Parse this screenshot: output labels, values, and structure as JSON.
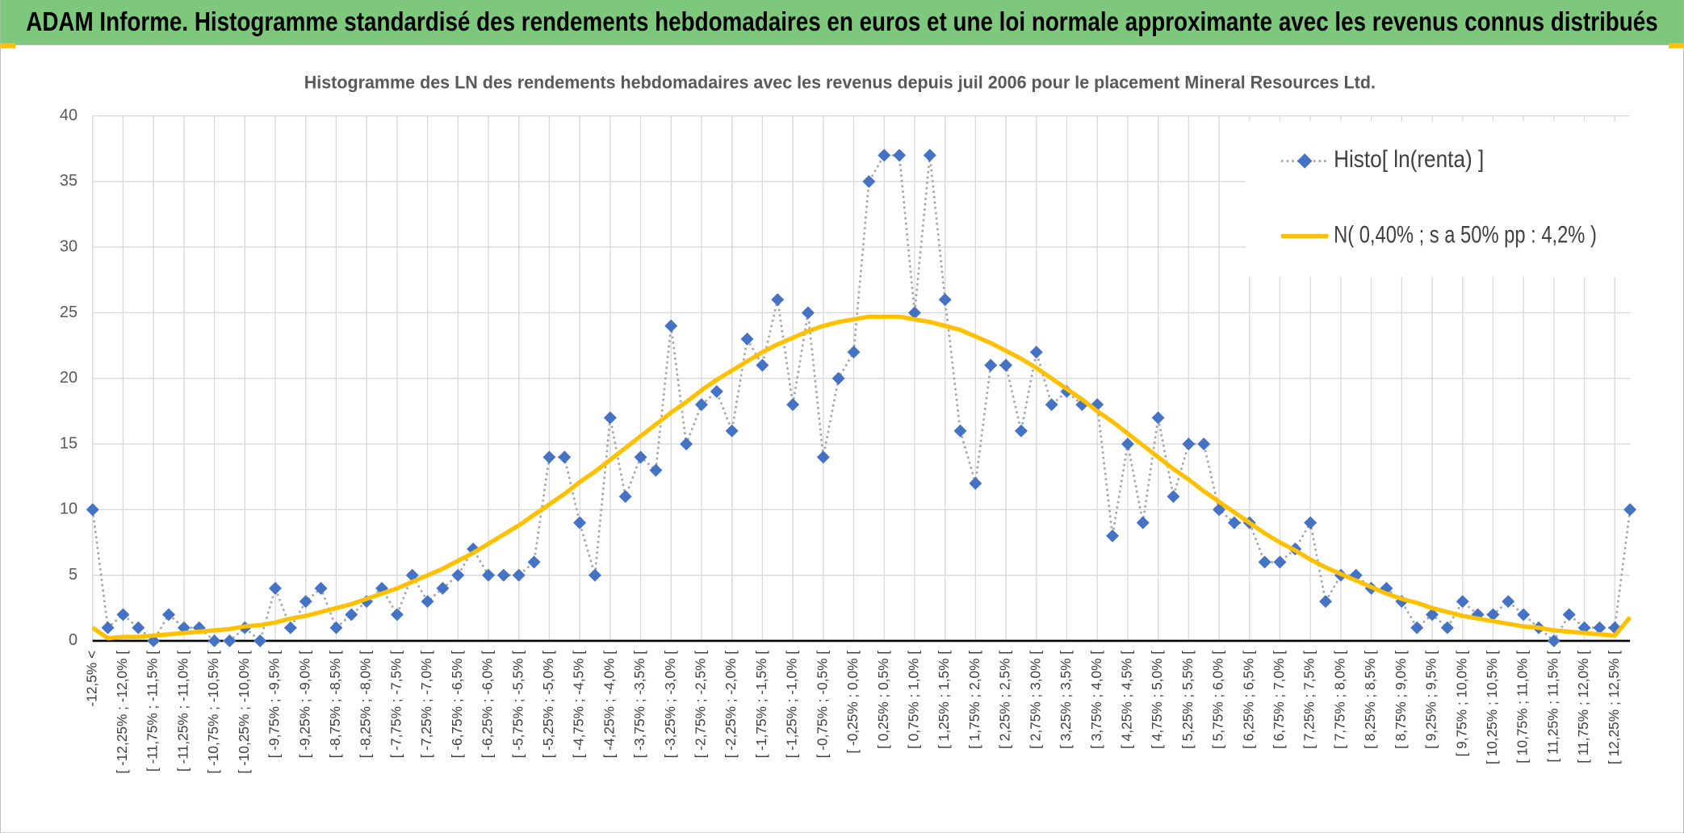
{
  "header": {
    "title": "ADAM Informe. Histogramme standardisé des rendements hebdomadaires en euros et une loi normale approximante avec les revenus connus distribués"
  },
  "chart_data": {
    "type": "line",
    "title": "Histogramme des LN des rendements hebdomadaires avec les revenus depuis juil 2006 pour le placement Mineral Resources Ltd.",
    "categories": [
      "-12,5% <",
      null,
      "[ -12,25% ; -12,0% [",
      null,
      "[ -11,75% ; -11,5% [",
      null,
      "[ -11,25% ; -11,0% [",
      null,
      "[ -10,75% ; -10,5% [",
      null,
      "[ -10,25% ; -10,0% [",
      null,
      "[ -9,75% ; -9,5% [",
      null,
      "[ -9,25% ; -9,0% [",
      null,
      "[ -8,75% ; -8,5% [",
      null,
      "[ -8,25% ; -8,0% [",
      null,
      "[ -7,75% ; -7,5% [",
      null,
      "[ -7,25% ; -7,0% [",
      null,
      "[ -6,75% ; -6,5% [",
      null,
      "[ -6,25% ; -6,0% [",
      null,
      "[ -5,75% ; -5,5% [",
      null,
      "[ -5,25% ; -5,0% [",
      null,
      "[ -4,75% ; -4,5% [",
      null,
      "[ -4,25% ; -4,0% [",
      null,
      "[ -3,75% ; -3,5% [",
      null,
      "[ -3,25% ; -3,0% [",
      null,
      "[ -2,75% ; -2,5% [",
      null,
      "[ -2,25% ; -2,0% [",
      null,
      "[ -1,75% ; -1,5% [",
      null,
      "[ -1,25% ; -1,0% [",
      null,
      "[ -0,75% ; -0,5% [",
      null,
      "[ -0,25% ; 0,0% [",
      null,
      "[ 0,25% ; 0,5% [",
      null,
      "[ 0,75% ; 1,0% [",
      null,
      "[ 1,25% ; 1,5% [",
      null,
      "[ 1,75% ; 2,0% [",
      null,
      "[ 2,25% ; 2,5% [",
      null,
      "[ 2,75% ; 3,0% [",
      null,
      "[ 3,25% ; 3,5% [",
      null,
      "[ 3,75% ; 4,0% [",
      null,
      "[ 4,25% ; 4,5% [",
      null,
      "[ 4,75% ; 5,0% [",
      null,
      "[ 5,25% ; 5,5% [",
      null,
      "[ 5,75% ; 6,0% [",
      null,
      "[ 6,25% ; 6,5% [",
      null,
      "[ 6,75% ; 7,0% [",
      null,
      "[ 7,25% ; 7,5% [",
      null,
      "[ 7,75% ; 8,0% [",
      null,
      "[ 8,25% ; 8,5% [",
      null,
      "[ 8,75% ; 9,0% [",
      null,
      "[ 9,25% ; 9,5% [",
      null,
      "[ 9,75% ; 10,0% [",
      null,
      "[ 10,25% ; 10,5% [",
      null,
      "[ 10,75% ; 11,0% [",
      null,
      "[ 11,25% ; 11,5% [",
      null,
      "[ 11,75% ; 12,0% [",
      null,
      "[ 12,25% ; 12,5% [",
      null
    ],
    "series": [
      {
        "name": "Histo[ ln(renta) ]",
        "color": "#4472c4",
        "line_color": "#a6a6a6",
        "marker": "diamond",
        "line_style": "dotted",
        "values": [
          10,
          1,
          2,
          1,
          0,
          2,
          1,
          1,
          0,
          0,
          1,
          0,
          4,
          1,
          3,
          4,
          1,
          2,
          3,
          4,
          2,
          5,
          3,
          4,
          5,
          7,
          5,
          5,
          5,
          6,
          14,
          14,
          9,
          5,
          17,
          11,
          14,
          13,
          24,
          15,
          18,
          19,
          16,
          23,
          21,
          26,
          18,
          25,
          14,
          20,
          22,
          35,
          37,
          37,
          25,
          37,
          26,
          16,
          12,
          21,
          21,
          16,
          22,
          18,
          19,
          18,
          18,
          8,
          15,
          9,
          17,
          11,
          15,
          15,
          10,
          9,
          9,
          6,
          6,
          7,
          9,
          3,
          5,
          5,
          4,
          4,
          3,
          1,
          2,
          1,
          3,
          2,
          2,
          3,
          2,
          1,
          0,
          2,
          1,
          1,
          1,
          10
        ]
      },
      {
        "name": "N( 0,40% ; s a 50% pp : 4,2% )",
        "color": "#ffc000",
        "marker": "none",
        "line_style": "solid",
        "values": [
          1.0,
          0.2,
          0.3,
          0.3,
          0.4,
          0.5,
          0.6,
          0.7,
          0.8,
          0.9,
          1.1,
          1.2,
          1.4,
          1.7,
          1.9,
          2.2,
          2.5,
          2.8,
          3.2,
          3.6,
          4.0,
          4.5,
          5.0,
          5.5,
          6.1,
          6.7,
          7.4,
          8.1,
          8.8,
          9.6,
          10.4,
          11.2,
          12.1,
          12.9,
          13.8,
          14.7,
          15.6,
          16.5,
          17.4,
          18.2,
          19.1,
          19.9,
          20.6,
          21.3,
          22.0,
          22.6,
          23.1,
          23.6,
          24.0,
          24.3,
          24.5,
          24.7,
          24.7,
          24.7,
          24.5,
          24.3,
          24.0,
          23.7,
          23.2,
          22.7,
          22.1,
          21.5,
          20.8,
          20.0,
          19.2,
          18.4,
          17.5,
          16.7,
          15.8,
          14.9,
          14.0,
          13.1,
          12.3,
          11.4,
          10.6,
          9.8,
          9.0,
          8.2,
          7.5,
          6.9,
          6.2,
          5.6,
          5.1,
          4.6,
          4.1,
          3.6,
          3.2,
          2.9,
          2.5,
          2.2,
          1.9,
          1.7,
          1.5,
          1.3,
          1.1,
          1.0,
          0.8,
          0.7,
          0.6,
          0.5,
          0.4,
          1.8
        ]
      }
    ],
    "ylim": [
      0,
      40
    ],
    "yticks": [
      0,
      5,
      10,
      15,
      20,
      25,
      30,
      35,
      40
    ],
    "grid": true,
    "legend": "top-right"
  }
}
